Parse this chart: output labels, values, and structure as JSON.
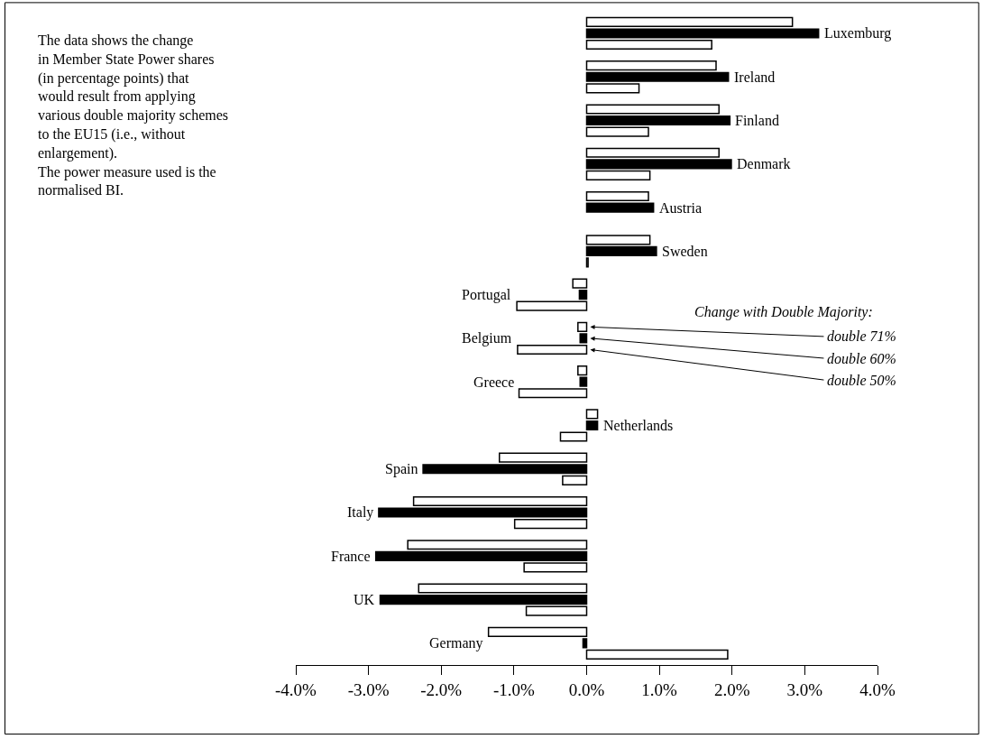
{
  "chart_data": {
    "type": "bar",
    "orientation": "horizontal",
    "tick_labels": "x",
    "categories": [
      "Luxemburg",
      "Ireland",
      "Finland",
      "Denmark",
      "Austria",
      "Sweden",
      "Portugal",
      "Belgium",
      "Greece",
      "Netherlands",
      "Spain",
      "Italy",
      "France",
      "UK",
      "Germany"
    ],
    "legend_title": "Change with Double Majority:",
    "series": [
      {
        "name": "double 71%",
        "color": "#ffffff",
        "values": [
          2.83,
          1.78,
          1.82,
          1.82,
          0.85,
          0.87,
          -0.19,
          -0.12,
          -0.12,
          0.15,
          -1.2,
          -2.38,
          -2.46,
          -2.31,
          -1.35
        ]
      },
      {
        "name": "double 60%",
        "color": "#000000",
        "values": [
          3.19,
          1.95,
          1.97,
          1.99,
          0.92,
          0.96,
          -0.1,
          -0.09,
          -0.09,
          0.15,
          -2.25,
          -2.86,
          -2.9,
          -2.84,
          -0.05
        ]
      },
      {
        "name": "double 50%",
        "color": "#ffffff",
        "values": [
          1.72,
          0.72,
          0.85,
          0.87,
          null,
          0.02,
          -0.96,
          -0.95,
          -0.93,
          -0.36,
          -0.33,
          -0.99,
          -0.86,
          -0.83,
          1.94
        ]
      }
    ],
    "xlim": [
      -4,
      4
    ],
    "xticks": [
      {
        "value": -4,
        "label": "-4.0%"
      },
      {
        "value": -3,
        "label": "-3.0%"
      },
      {
        "value": -2,
        "label": "-2.0%"
      },
      {
        "value": -1,
        "label": "-1.0%"
      },
      {
        "value": 0,
        "label": "0.0%"
      },
      {
        "value": 1,
        "label": "1.0%"
      },
      {
        "value": 2,
        "label": "2.0%"
      },
      {
        "value": 3,
        "label": "3.0%"
      },
      {
        "value": 4,
        "label": "4.0%"
      }
    ],
    "legend": "right",
    "annotations": [
      "The data shows the change\nin Member State Power shares\n(in percentage points) that\nwould result from applying\nvarious double majority schemes\nto the EU15 (i.e., without\nenlargement).\nThe power measure used is the\nnormalised BI."
    ]
  }
}
